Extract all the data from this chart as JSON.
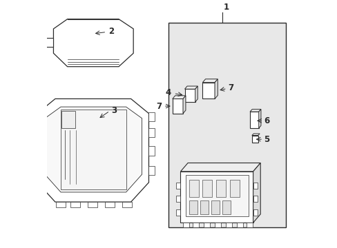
{
  "bg_color": "#ffffff",
  "line_color": "#2a2a2a",
  "box_bg": "#ebebeb",
  "fig_width": 4.89,
  "fig_height": 3.6,
  "dpi": 100
}
